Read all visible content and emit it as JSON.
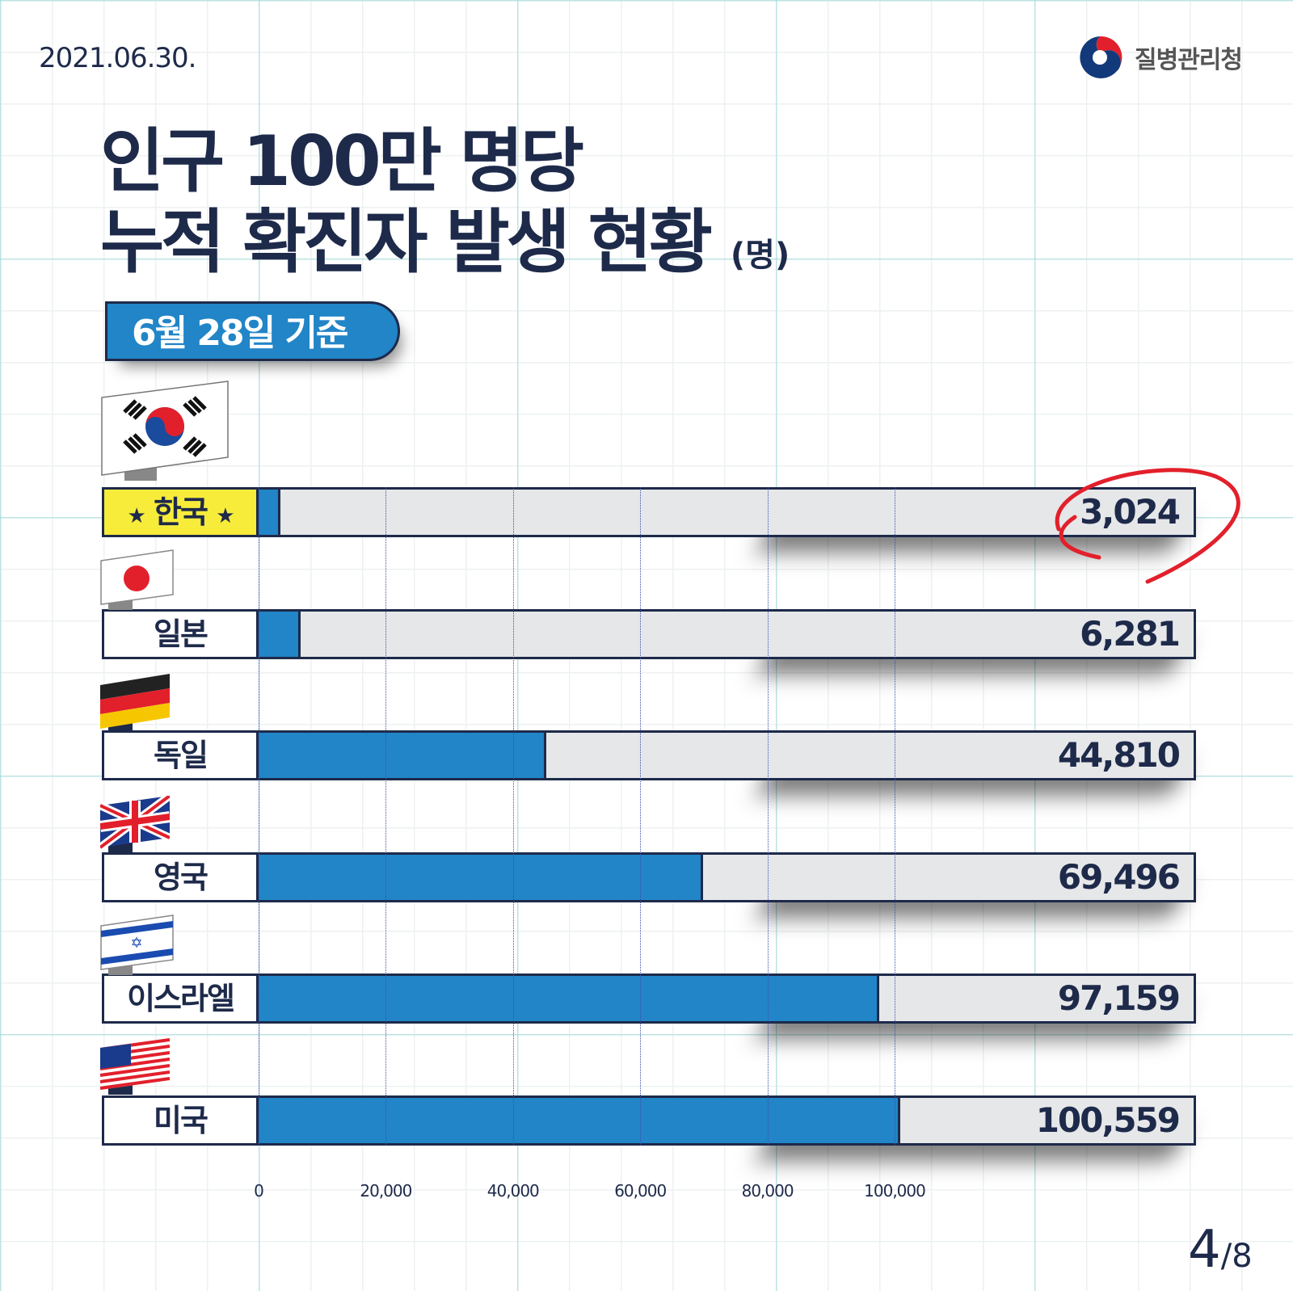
{
  "date": "2021.06.30.",
  "org": "질병관리청",
  "title_line1": "인구 100만 명당",
  "title_line2": "누적 확진자 발생 현황",
  "unit": "(명)",
  "basis": "6월 28일 기준",
  "page": {
    "current": "4",
    "total": "/8"
  },
  "colors": {
    "navy": "#1e2a4a",
    "bar": "#2185c7",
    "track": "#e6e7e9",
    "highlight": "#f7ec3a",
    "circle": "#e2202b"
  },
  "chart_data": {
    "type": "bar",
    "orientation": "horizontal",
    "title": "인구 100만 명당 누적 확진자 발생 현황 (명)",
    "categories": [
      "한국",
      "일본",
      "독일",
      "영국",
      "이스라엘",
      "미국"
    ],
    "values": [
      3024,
      6281,
      44810,
      69496,
      97159,
      100559
    ],
    "value_labels": [
      "3,024",
      "6,281",
      "44,810",
      "69,496",
      "97,159",
      "100,559"
    ],
    "x_ticks": [
      "0",
      "20,000",
      "40,000",
      "60,000",
      "80,000",
      "100,000"
    ],
    "xlim": [
      0,
      100000
    ],
    "highlight": "한국",
    "star": "★"
  }
}
